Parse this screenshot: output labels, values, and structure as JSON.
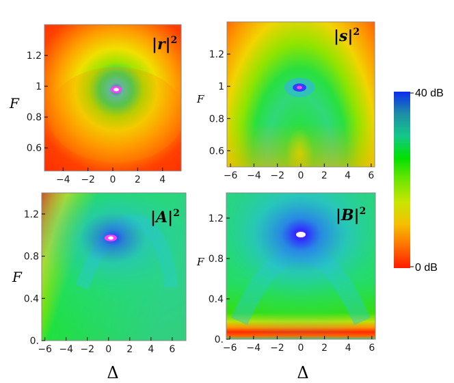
{
  "chart_data": [
    {
      "type": "heatmap",
      "panel_label": "|r|²",
      "label_parts": {
        "pre": "|",
        "var": "r",
        "post": "|",
        "sup": "2"
      },
      "ylabel": "F",
      "xlabel": "",
      "xlim": [
        -5.5,
        5.5
      ],
      "ylim": [
        0.45,
        1.4
      ],
      "xticks": [
        "−4",
        "−2",
        "0",
        "2",
        "4"
      ],
      "xtick_values": [
        -4,
        -2,
        0,
        2,
        4
      ],
      "yticks": [
        "0.6",
        "0.8",
        "1",
        "1.2"
      ],
      "ytick_values": [
        0.6,
        0.8,
        1.0,
        1.2
      ],
      "peak": {
        "x": 0,
        "y": 1.0,
        "level_db": 40
      },
      "feature": "dome-shaped ridge centered at Δ=0, F=1"
    },
    {
      "type": "heatmap",
      "panel_label": "|s|²",
      "label_parts": {
        "pre": "|",
        "var": "s",
        "post": "|",
        "sup": "2"
      },
      "ylabel": "F",
      "xlabel": "",
      "xlim": [
        -6.3,
        6.3
      ],
      "ylim": [
        0.5,
        1.4
      ],
      "xticks": [
        "−6",
        "−4",
        "−2",
        "0",
        "2",
        "4",
        "6"
      ],
      "xtick_values": [
        -6,
        -4,
        -2,
        0,
        2,
        4,
        6
      ],
      "yticks": [
        "0.6",
        "0.8",
        "1",
        "1.2"
      ],
      "ytick_values": [
        0.6,
        0.8,
        1.0,
        1.2
      ],
      "peak": {
        "x": 0,
        "y": 1.0,
        "level_db": 40
      },
      "feature": "wide parabolic arch centered at Δ=0"
    },
    {
      "type": "heatmap",
      "panel_label": "|A|²",
      "label_parts": {
        "pre": "|",
        "var": "A",
        "post": "|",
        "sup": "2"
      },
      "ylabel": "F",
      "xlabel": "Δ",
      "xlim": [
        -6.3,
        7.3
      ],
      "ylim": [
        0.0,
        1.4
      ],
      "xticks": [
        "−6",
        "−4",
        "−2",
        "0",
        "2",
        "4",
        "6"
      ],
      "xtick_values": [
        -6,
        -4,
        -2,
        0,
        2,
        4,
        6
      ],
      "yticks": [
        "0.",
        "0.4",
        "0.8",
        "1.2"
      ],
      "ytick_values": [
        0.0,
        0.4,
        0.8,
        1.2
      ],
      "peak": {
        "x": 0.3,
        "y": 1.0,
        "level_db": 40
      },
      "feature": "tilted arch with low-level red band upper-left"
    },
    {
      "type": "heatmap",
      "panel_label": "|B|²",
      "label_parts": {
        "pre": "|",
        "var": "B",
        "post": "|",
        "sup": "2"
      },
      "ylabel": "F",
      "xlabel": "Δ",
      "xlim": [
        -6.3,
        6.3
      ],
      "ylim": [
        0.0,
        1.45
      ],
      "xticks": [
        "−6",
        "−4",
        "−2",
        "0",
        "2",
        "4",
        "6"
      ],
      "xtick_values": [
        -6,
        -4,
        -2,
        0,
        2,
        4,
        6
      ],
      "yticks": [
        "0.",
        "0.4",
        "0.8",
        "1.2"
      ],
      "ytick_values": [
        0.0,
        0.4,
        0.8,
        1.2
      ],
      "peak": {
        "x": 0,
        "y": 1.0,
        "level_db": 40
      },
      "feature": "broad arch with red band near F=0"
    }
  ],
  "colorbar": {
    "max_label": "40 dB",
    "min_label": "0 dB",
    "range_db": [
      0,
      40
    ],
    "colors_top_to_bottom": [
      "#0a2cf0",
      "#1e8ea6",
      "#14c78a",
      "#00e000",
      "#6ee600",
      "#c8e600",
      "#f4c000",
      "#ff7000",
      "#ff1c00"
    ]
  }
}
